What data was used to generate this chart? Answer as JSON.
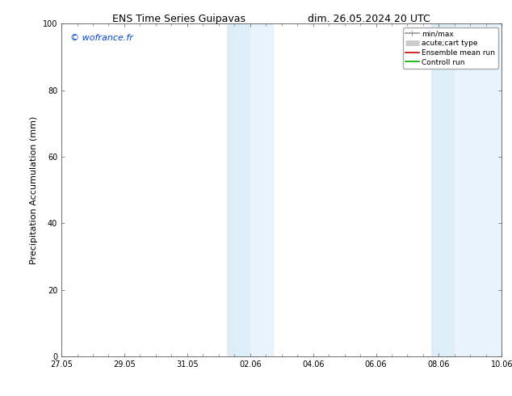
{
  "title_left": "ENS Time Series Guipavas",
  "title_right": "dim. 26.05.2024 20 UTC",
  "ylabel": "Precipitation Accumulation (mm)",
  "ylim": [
    0,
    100
  ],
  "yticks": [
    0,
    20,
    40,
    60,
    80,
    100
  ],
  "xtick_labels": [
    "27.05",
    "29.05",
    "31.05",
    "02.06",
    "04.06",
    "06.06",
    "08.06",
    "10.06"
  ],
  "xtick_positions": [
    0,
    2,
    4,
    6,
    8,
    10,
    12,
    14
  ],
  "xlim": [
    0,
    14
  ],
  "shaded_bands": [
    {
      "x_start": 5.25,
      "x_end": 6.0,
      "color": "#ddeef8"
    },
    {
      "x_start": 6.0,
      "x_end": 6.75,
      "color": "#e8f3fb"
    },
    {
      "x_start": 11.75,
      "x_end": 12.5,
      "color": "#ddeef8"
    },
    {
      "x_start": 12.5,
      "x_end": 14.0,
      "color": "#e8f3fb"
    }
  ],
  "watermark_text": "© wofrance.fr",
  "watermark_color": "#0044cc",
  "legend_entries": [
    {
      "label": "min/max",
      "color": "#999999",
      "lw": 1.2
    },
    {
      "label": "acute;cart type",
      "color": "#cccccc",
      "lw": 5
    },
    {
      "label": "Ensemble mean run",
      "color": "#cc0000",
      "lw": 1.2
    },
    {
      "label": "Controll run",
      "color": "#00aa00",
      "lw": 1.2
    }
  ],
  "bg_color": "#ffffff",
  "spine_color": "#555555",
  "tick_color": "#555555",
  "title_fontsize": 9,
  "axis_label_fontsize": 8,
  "tick_fontsize": 7,
  "watermark_fontsize": 8,
  "legend_fontsize": 6.5
}
